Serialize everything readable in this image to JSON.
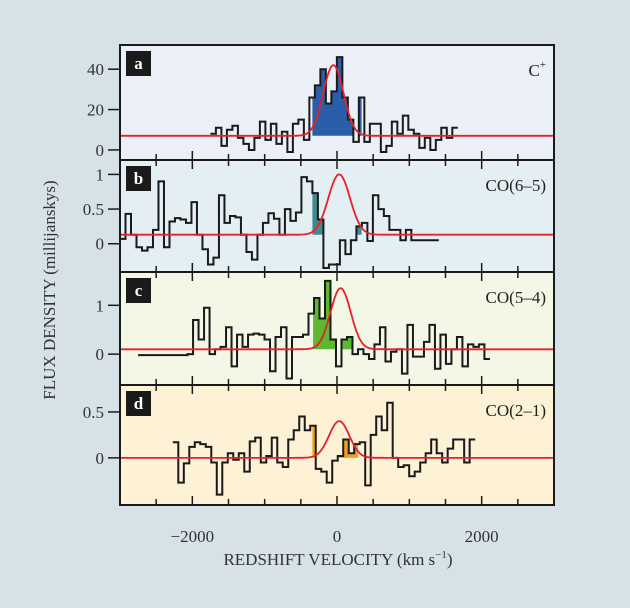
{
  "chart_data": {
    "type": "line",
    "style": "step-histogram with gaussian fits, 4 stacked panels",
    "xlabel": "REDSHIFT VELOCITY (km s",
    "xlabel_sup": "−1",
    "xlabel_close": ")",
    "ylabel": "FLUX DENSITY (millijanskys)",
    "xlim": [
      -3000,
      3000
    ],
    "xticks_major": [
      -2000,
      0,
      2000
    ],
    "xtick_labels": [
      "−2000",
      "0",
      "2000"
    ],
    "xticks_minor_step": 500,
    "fit_color": "#e8202a",
    "panels": [
      {
        "tag": "a",
        "species": "C",
        "species_sup": "+",
        "background": "#eaeff8",
        "fill_color": "#2a5ea8",
        "ylim": [
          -3,
          50
        ],
        "yticks": [
          0,
          20,
          40
        ],
        "ytick_labels": [
          "0",
          "20",
          "40"
        ],
        "continuum": 7,
        "fit": {
          "amplitude": 35,
          "center": -50,
          "sigma": 140
        },
        "fill_range": [
          -340,
          340
        ],
        "bin_width": 76,
        "x_start": -1750,
        "values": [
          8,
          11,
          2,
          10,
          12,
          6,
          3,
          0,
          6,
          14,
          5,
          13,
          3,
          9,
          -1,
          13,
          15,
          5,
          26,
          32,
          40,
          23,
          29,
          46,
          26,
          15,
          4,
          26,
          4,
          13,
          13,
          -1,
          2,
          14,
          8,
          17,
          10,
          8,
          1,
          6,
          0,
          5,
          11,
          6,
          11
        ]
      },
      {
        "tag": "b",
        "species": "CO(6–5)",
        "species_sup": "",
        "background": "#e4eff3",
        "fill_color": "#3e8c90",
        "ylim": [
          -0.35,
          1.15
        ],
        "yticks": [
          0,
          0.5,
          1
        ],
        "ytick_labels": [
          "0",
          "0.5",
          "1"
        ],
        "continuum": 0.13,
        "fit": {
          "amplitude": 0.87,
          "center": 30,
          "sigma": 150
        },
        "fill_range": [
          -340,
          340
        ],
        "bin_width": 76,
        "x_start": -3000,
        "values": [
          0.07,
          0.43,
          0.13,
          -0.05,
          -0.1,
          -0.05,
          0.2,
          0.9,
          -0.05,
          0.32,
          0.37,
          0.35,
          0.3,
          0.6,
          0.13,
          -0.08,
          -0.3,
          -0.2,
          0.7,
          0.3,
          0.4,
          0.38,
          0.13,
          -0.12,
          -0.23,
          0.13,
          0.3,
          0.44,
          0.36,
          0.13,
          0.5,
          0.33,
          0.45,
          0.96,
          0.9,
          0.73,
          0.35,
          -0.35,
          -0.3,
          -0.3,
          0.05,
          -0.15,
          0.05,
          0.25,
          0.3,
          0.04,
          0.7,
          0.5,
          0.4,
          0.2,
          0.2,
          0.05,
          0.2,
          0.05,
          0.05,
          0.05,
          0.05,
          0.05
        ]
      },
      {
        "tag": "c",
        "species": "CO(5–4)",
        "species_sup": "",
        "background": "#f3f7e6",
        "fill_color": "#5cb830",
        "ylim": [
          -0.55,
          1.6
        ],
        "yticks": [
          0,
          1
        ],
        "ytick_labels": [
          "0",
          "1"
        ],
        "continuum": 0.1,
        "fit": {
          "amplitude": 1.25,
          "center": 50,
          "sigma": 140
        },
        "fill_range": [
          -330,
          340
        ],
        "bin_width": 76,
        "x_start": -2750,
        "values": [
          -0.02,
          -0.02,
          -0.02,
          -0.02,
          -0.02,
          -0.02,
          -0.02,
          -0.02,
          -0.02,
          0.0,
          0.7,
          0.3,
          0.95,
          0.0,
          0.1,
          0.15,
          0.55,
          -0.25,
          0.4,
          0.15,
          0.4,
          0.42,
          0.4,
          0.3,
          -0.35,
          0.35,
          0.55,
          -0.5,
          0.35,
          0.35,
          0.4,
          0.83,
          1.15,
          0.73,
          1.5,
          0.3,
          -0.25,
          0.3,
          0.35,
          0.0,
          0.1,
          0.0,
          -0.1,
          0.2,
          0.55,
          -0.15,
          0.05,
          0.1,
          -0.4,
          0.6,
          -0.05,
          -0.05,
          0.25,
          0.6,
          -0.3,
          0.4,
          -0.2,
          0.1,
          0.35,
          -0.25,
          0.2,
          0.15,
          0.2,
          -0.1
        ]
      },
      {
        "tag": "d",
        "species": "CO(2–1)",
        "species_sup": "",
        "background": "#fdf1d6",
        "fill_color": "#f5a01a",
        "ylim": [
          -0.47,
          0.75
        ],
        "yticks": [
          0,
          0.5
        ],
        "ytick_labels": [
          "0",
          "0.5"
        ],
        "continuum": 0.0,
        "fit": {
          "amplitude": 0.4,
          "center": 30,
          "sigma": 140
        },
        "fill_range": [
          -340,
          290
        ],
        "bin_width": 76,
        "x_start": -2270,
        "values": [
          0.17,
          -0.27,
          -0.06,
          0.12,
          0.17,
          0.15,
          0.12,
          -0.05,
          -0.4,
          -0.05,
          0.05,
          -0.02,
          0.05,
          -0.15,
          0.18,
          0.22,
          -0.05,
          0.02,
          0.22,
          -0.05,
          -0.1,
          0.2,
          0.3,
          0.45,
          0.3,
          0.35,
          -0.12,
          -0.15,
          -0.27,
          -0.03,
          0.02,
          0.2,
          0.05,
          0.15,
          0.17,
          -0.3,
          0.25,
          0.45,
          0.3,
          0.6,
          0.0,
          -0.1,
          -0.08,
          -0.2,
          -0.15,
          -0.05,
          0.05,
          0.2,
          0.05,
          -0.05,
          0.1,
          0.2,
          0.2,
          -0.05,
          0.2
        ]
      }
    ]
  }
}
